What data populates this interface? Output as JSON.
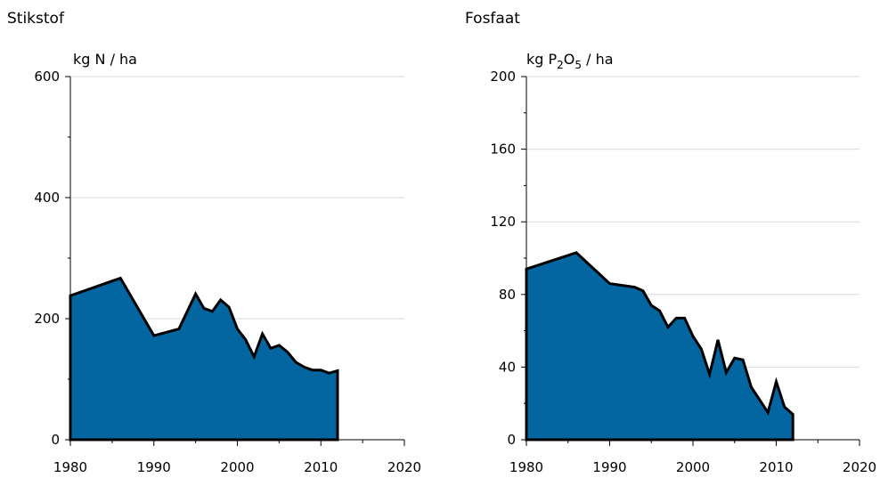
{
  "chart_data": [
    {
      "type": "area",
      "title": "Stikstof",
      "ylabel": "kg N / ha",
      "xlim": [
        1980,
        2020
      ],
      "ylim": [
        0,
        600
      ],
      "xticks": [
        1980,
        1990,
        2000,
        2010,
        2020
      ],
      "yticks": [
        0,
        200,
        400,
        600
      ],
      "grid": true,
      "fill_color": "#0366a0",
      "series": [
        {
          "x": [
            1980,
            1986,
            1990,
            1993,
            1995,
            1996,
            1997,
            1998,
            1999,
            2000,
            2001,
            2002,
            2003,
            2004,
            2005,
            2006,
            2007,
            2008,
            2009,
            2010,
            2011,
            2012
          ],
          "values": [
            238,
            267,
            172,
            183,
            241,
            217,
            212,
            231,
            219,
            183,
            165,
            137,
            175,
            151,
            156,
            145,
            128,
            120,
            115,
            115,
            110,
            114
          ]
        }
      ]
    },
    {
      "type": "area",
      "title": "Fosfaat",
      "ylabel_parts": [
        "kg P",
        "2",
        "O",
        "5",
        " / ha"
      ],
      "xlim": [
        1980,
        2020
      ],
      "ylim": [
        0,
        200
      ],
      "xticks": [
        1980,
        1990,
        2000,
        2010,
        2020
      ],
      "yticks": [
        0,
        40,
        80,
        120,
        160,
        200
      ],
      "grid": true,
      "fill_color": "#0366a0",
      "series": [
        {
          "x": [
            1980,
            1986,
            1990,
            1993,
            1994,
            1995,
            1996,
            1997,
            1998,
            1999,
            2000,
            2001,
            2002,
            2003,
            2004,
            2005,
            2006,
            2007,
            2008,
            2009,
            2010,
            2011,
            2012
          ],
          "values": [
            94,
            103,
            86,
            84,
            82,
            74,
            71,
            62,
            67,
            67,
            57,
            50,
            36,
            55,
            37,
            45,
            44,
            29,
            22,
            15,
            32,
            18,
            14
          ]
        }
      ]
    }
  ]
}
